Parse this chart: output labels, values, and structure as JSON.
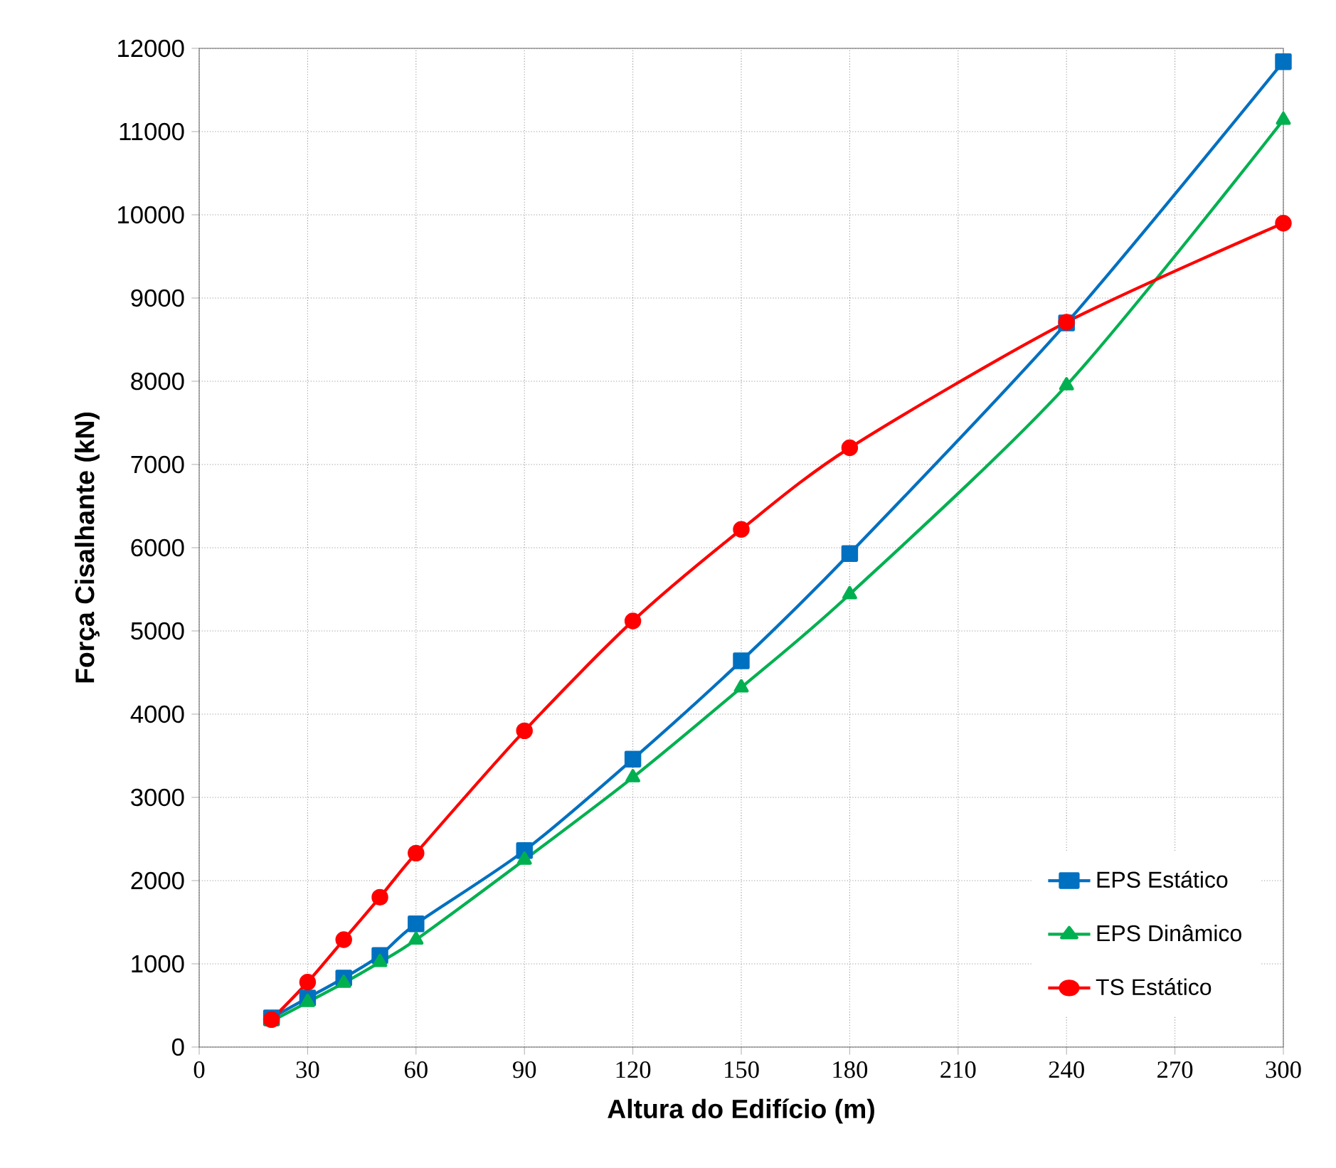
{
  "chart_data": {
    "type": "line",
    "xlabel": "Altura do Edifício (m)",
    "ylabel": "Força Cisalhante (kN)",
    "x": [
      20,
      30,
      40,
      50,
      60,
      90,
      120,
      150,
      180,
      240,
      300
    ],
    "series": [
      {
        "name": "EPS Estático",
        "color": "#0070c0",
        "marker": "square",
        "values": [
          350,
          590,
          830,
          1100,
          1480,
          2360,
          3460,
          4640,
          5930,
          8700,
          11840
        ]
      },
      {
        "name": "EPS Dinâmico",
        "color": "#00b050",
        "marker": "triangle",
        "values": [
          310,
          540,
          770,
          1020,
          1290,
          2250,
          3240,
          4320,
          5440,
          7950,
          11140
        ]
      },
      {
        "name": "TS Estático",
        "color": "#ff0000",
        "marker": "circle",
        "values": [
          330,
          780,
          1290,
          1800,
          2330,
          3800,
          5120,
          6220,
          7200,
          8710,
          9900
        ]
      }
    ],
    "xlim": [
      0,
      300
    ],
    "xticks": [
      0,
      30,
      60,
      90,
      120,
      150,
      180,
      210,
      240,
      270,
      300
    ],
    "ylim": [
      0,
      12000
    ],
    "yticks": [
      0,
      1000,
      2000,
      3000,
      4000,
      5000,
      6000,
      7000,
      8000,
      9000,
      10000,
      11000,
      12000
    ],
    "grid": true,
    "legend": "bottom right",
    "line_style": "solid"
  }
}
